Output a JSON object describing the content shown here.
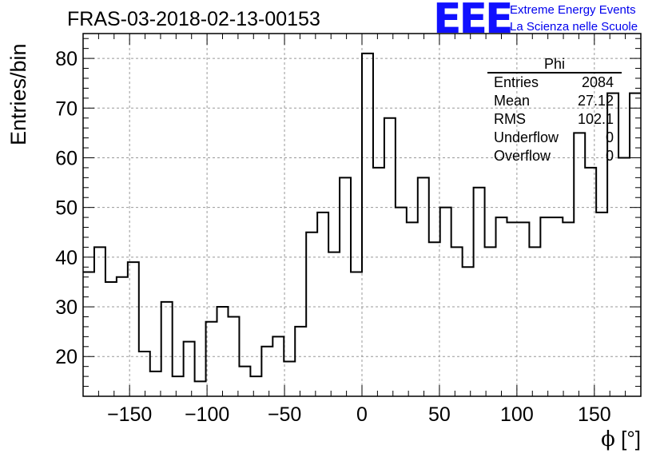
{
  "chart_data": {
    "type": "histogram",
    "title": "FRAS-03-2018-02-13-00153",
    "xlabel_symbol": "ϕ",
    "xlabel_unit": "[°]",
    "ylabel": "Entries/bin",
    "xlim": [
      -180,
      180
    ],
    "ylim": [
      12,
      85
    ],
    "bin_width": 7.2,
    "values": [
      37,
      42,
      35,
      36,
      39,
      21,
      17,
      31,
      16,
      23,
      15,
      27,
      30,
      28,
      18,
      16,
      22,
      24,
      19,
      26,
      45,
      49,
      41,
      56,
      37,
      81,
      58,
      68,
      50,
      47,
      56,
      43,
      50,
      42,
      38,
      54,
      42,
      48,
      47,
      47,
      42,
      48,
      48,
      47,
      65,
      58,
      49,
      73,
      60,
      73
    ],
    "xticks": [
      -150,
      -100,
      -50,
      0,
      50,
      100,
      150
    ],
    "xtick_labels": [
      "−150",
      "−100",
      "−50",
      "0",
      "50",
      "100",
      "150"
    ],
    "yticks": [
      20,
      30,
      40,
      50,
      60,
      70,
      80
    ],
    "ytick_labels": [
      "20",
      "30",
      "40",
      "50",
      "60",
      "70",
      "80"
    ],
    "grid": true,
    "stats": {
      "title": "Phi",
      "rows": [
        {
          "label": "Entries",
          "value": "2084"
        },
        {
          "label": "Mean",
          "value": "27.12"
        },
        {
          "label": "RMS",
          "value": "102.1"
        },
        {
          "label": "Underflow",
          "value": "0"
        },
        {
          "label": "Overflow",
          "value": "0"
        }
      ]
    }
  },
  "logo": {
    "mark": "EEE",
    "line1": "Extreme Energy Events",
    "line2": "La Scienza nelle Scuole"
  }
}
